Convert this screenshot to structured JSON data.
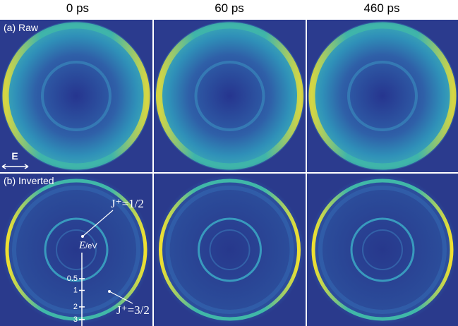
{
  "header": {
    "columns": [
      "0 ps",
      "60 ps",
      "460 ps"
    ]
  },
  "rows": [
    {
      "label": "(a) Raw"
    },
    {
      "label": "(b) Inverted"
    }
  ],
  "polarization": {
    "label": "E"
  },
  "annotations": [
    "J⁺=1/2",
    "J⁺=3/2"
  ],
  "energy_axis": {
    "symbol": "E",
    "unit": "/eV",
    "scale": "sqrt",
    "ticks": [
      0.5,
      1,
      2,
      3
    ]
  }
}
